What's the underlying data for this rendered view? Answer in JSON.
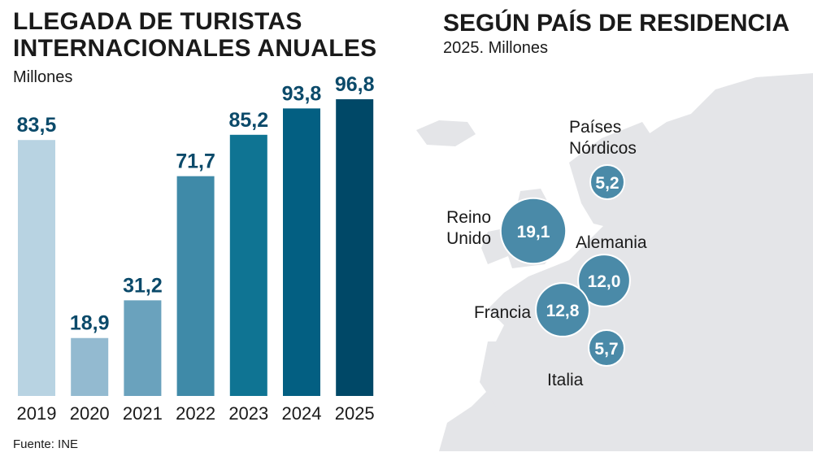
{
  "chart_data": [
    {
      "type": "bar",
      "title": "LLEGADA DE TURISTAS INTERNACIONALES ANUALES",
      "subtitle": "Millones",
      "categories": [
        "2019",
        "2020",
        "2021",
        "2022",
        "2023",
        "2024",
        "2025"
      ],
      "values": [
        83.5,
        18.9,
        31.2,
        71.7,
        85.2,
        93.8,
        96.8
      ],
      "value_labels": [
        "83,5",
        "18,9",
        "31,2",
        "71,7",
        "85,2",
        "93,8",
        "96,8"
      ],
      "colors": [
        "#b8d3e2",
        "#93bad0",
        "#6aa2bd",
        "#3f8aa8",
        "#0f7493",
        "#035f82",
        "#004867"
      ],
      "ylim": [
        0,
        100
      ],
      "grid": false
    },
    {
      "type": "bubble-map",
      "title": "SEGÚN PAÍS DE RESIDENCIA",
      "subtitle": "2025. Millones",
      "color": "#4a8aa8",
      "points": [
        {
          "name": "Reino Unido",
          "label_lines": [
            "Reino",
            "Unido"
          ],
          "value": 19.1,
          "value_label": "19,1"
        },
        {
          "name": "Países Nórdicos",
          "label_lines": [
            "Países",
            "Nórdicos"
          ],
          "value": 5.2,
          "value_label": "5,2"
        },
        {
          "name": "Alemania",
          "label_lines": [
            "Alemania"
          ],
          "value": 12.0,
          "value_label": "12,0"
        },
        {
          "name": "Francia",
          "label_lines": [
            "Francia"
          ],
          "value": 12.8,
          "value_label": "12,8"
        },
        {
          "name": "Italia",
          "label_lines": [
            "Italia"
          ],
          "value": 5.7,
          "value_label": "5,7"
        }
      ]
    }
  ],
  "source": "Fuente: INE"
}
